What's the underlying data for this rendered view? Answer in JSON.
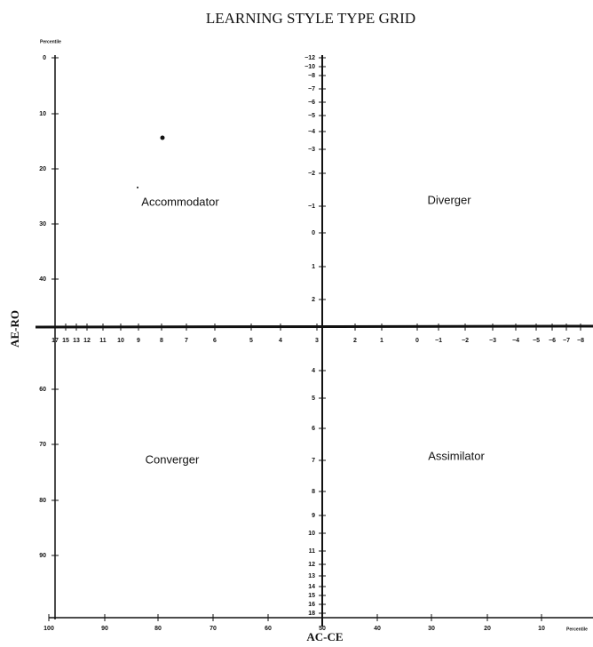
{
  "header": {
    "title": "LEARNING STYLE TYPE GRID"
  },
  "axes": {
    "y_label": "AE-RO",
    "x_label": "AC-CE",
    "percentile_top": "Percentile",
    "percentile_bottom": "Percentile",
    "left_ticks": [
      "0",
      "10",
      "20",
      "30",
      "40",
      "60",
      "70",
      "80",
      "90"
    ],
    "bottom_ticks": [
      "100",
      "90",
      "80",
      "70",
      "60",
      "50",
      "40",
      "30",
      "20",
      "10"
    ],
    "center_top_ticks": [
      "−12",
      "−10",
      "−8",
      "−7",
      "−6",
      "−5",
      "−4",
      "−3",
      "−2",
      "−1",
      "0",
      "1",
      "2"
    ],
    "center_bottom_ticks": [
      "4",
      "5",
      "6",
      "7",
      "8",
      "9",
      "10",
      "11",
      "12",
      "13",
      "14",
      "15",
      "16",
      "18"
    ],
    "horizontal_ticks": [
      "17",
      "15",
      "13",
      "12",
      "11",
      "10",
      "9",
      "8",
      "7",
      "6",
      "5",
      "4",
      "3",
      "2",
      "1",
      "0",
      "−1",
      "−2",
      "−3",
      "−4",
      "−5",
      "−6",
      "−7",
      "−8"
    ]
  },
  "quadrants": {
    "top_left": "Accommodator",
    "top_right": "Diverger",
    "bottom_left": "Converger",
    "bottom_right": "Assimilator"
  }
}
